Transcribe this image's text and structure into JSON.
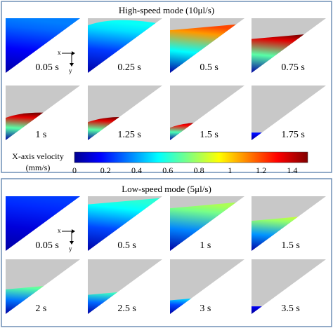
{
  "panels": [
    {
      "title": "High-speed mode (10μl/s)",
      "frames": [
        {
          "time": "0.05 s",
          "fill_fraction": 1.0,
          "peak_velocity_mm_s": 0.35,
          "meniscus": "flat-top"
        },
        {
          "time": "0.25 s",
          "fill_fraction": 0.92,
          "peak_velocity_mm_s": 0.55,
          "meniscus": "convex"
        },
        {
          "time": "0.5 s",
          "fill_fraction": 0.78,
          "peak_velocity_mm_s": 1.2,
          "meniscus": "tilted"
        },
        {
          "time": "0.75 s",
          "fill_fraction": 0.62,
          "peak_velocity_mm_s": 1.5,
          "meniscus": "tilted"
        },
        {
          "time": "1 s",
          "fill_fraction": 0.46,
          "peak_velocity_mm_s": 1.5,
          "meniscus": "convex"
        },
        {
          "time": "1.25 s",
          "fill_fraction": 0.38,
          "peak_velocity_mm_s": 1.5,
          "meniscus": "convex"
        },
        {
          "time": "1.5 s",
          "fill_fraction": 0.28,
          "peak_velocity_mm_s": 1.45,
          "meniscus": "convex"
        },
        {
          "time": "1.75 s",
          "fill_fraction": 0.14,
          "peak_velocity_mm_s": 0.2,
          "meniscus": "flat"
        }
      ]
    },
    {
      "title": "Low-speed mode (5μl/s)",
      "frames": [
        {
          "time": "0.05 s",
          "fill_fraction": 1.0,
          "peak_velocity_mm_s": 0.25,
          "meniscus": "flat-top"
        },
        {
          "time": "0.5 s",
          "fill_fraction": 0.85,
          "peak_velocity_mm_s": 0.6,
          "meniscus": "tilted"
        },
        {
          "time": "1 s",
          "fill_fraction": 0.78,
          "peak_velocity_mm_s": 0.8,
          "meniscus": "tilted"
        },
        {
          "time": "1.5 s",
          "fill_fraction": 0.55,
          "peak_velocity_mm_s": 0.85,
          "meniscus": "tilted"
        },
        {
          "time": "2 s",
          "fill_fraction": 0.45,
          "peak_velocity_mm_s": 0.75,
          "meniscus": "tilted"
        },
        {
          "time": "2.5 s",
          "fill_fraction": 0.35,
          "peak_velocity_mm_s": 0.7,
          "meniscus": "tilted"
        },
        {
          "time": "3 s",
          "fill_fraction": 0.25,
          "peak_velocity_mm_s": 0.6,
          "meniscus": "tilted"
        },
        {
          "time": "3.5 s",
          "fill_fraction": 0.14,
          "peak_velocity_mm_s": 0.15,
          "meniscus": "flat"
        }
      ]
    }
  ],
  "axis_labels": {
    "x": "x",
    "y": "y"
  },
  "colorbar": {
    "label_line1": "X-axis velocity",
    "label_line2": "(mm/s)",
    "ticks": [
      "0",
      "0.2",
      "0.4",
      "0.6",
      "0.8",
      "1",
      "1.2",
      "1.4"
    ],
    "min": 0,
    "max": 1.5,
    "colormap": "jet"
  },
  "colors": {
    "border": "#6f8fb5",
    "empty_region": "#c8c8c8",
    "text": "#000000"
  }
}
